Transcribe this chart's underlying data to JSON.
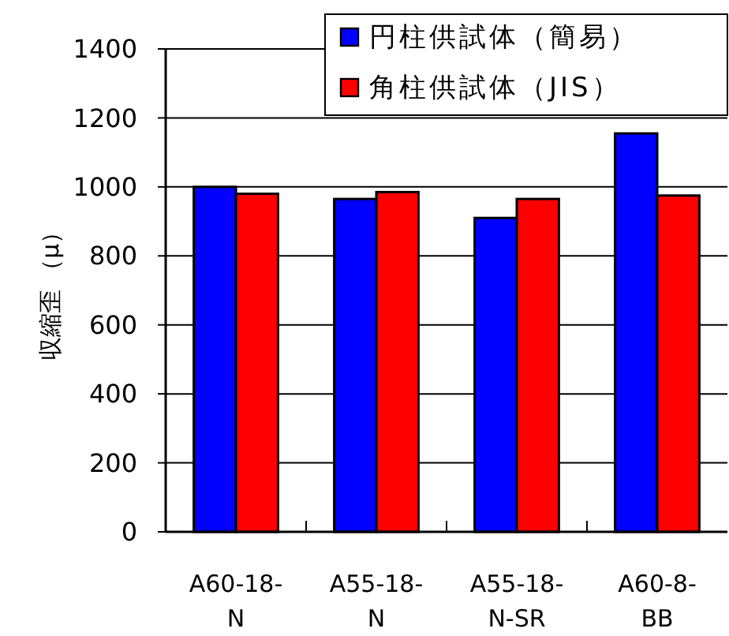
{
  "chart_data": {
    "type": "bar",
    "ylabel": "収縮歪 （μ）",
    "categories": [
      "A60-18-N",
      "A55-18-N",
      "A55-18-N-SR",
      "A60-8-BB"
    ],
    "series": [
      {
        "name": "円柱供試体（簡易）",
        "color": "#0000ff",
        "values": [
          1000,
          965,
          910,
          1155
        ]
      },
      {
        "name": "角柱供試体（JIS）",
        "color": "#ff0000",
        "values": [
          980,
          985,
          965,
          975
        ]
      }
    ],
    "ylim": [
      0,
      1400
    ],
    "yticks": [
      0,
      200,
      400,
      600,
      800,
      1000,
      1200,
      1400
    ],
    "grid": "y",
    "legend": "top right"
  }
}
